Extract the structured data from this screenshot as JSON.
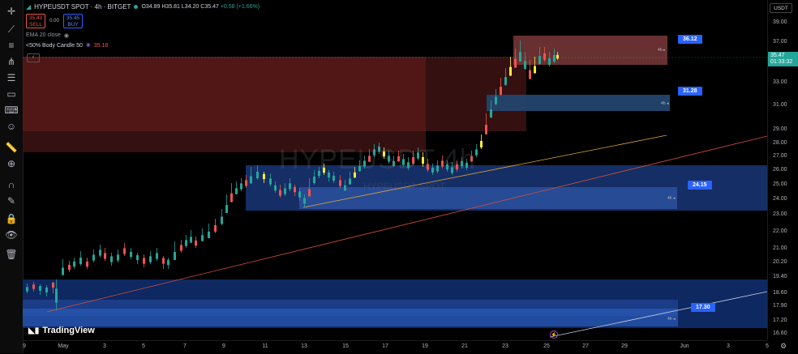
{
  "toolbar": {
    "tools": [
      "crosshair-icon",
      "trend-line-icon",
      "horizontal-lines-icon",
      "pitchfork-icon",
      "fib-icon",
      "rectangle-icon",
      "text-icon",
      "emoji-icon",
      "ruler-icon",
      "zoom-icon",
      "magnet-icon",
      "lock-drawing-icon",
      "lock-icon",
      "eye-icon",
      "trash-icon"
    ]
  },
  "header": {
    "symbol": "HYPEUSDT SPOT · 4h · BITGET",
    "ohlc": {
      "o": "O34.89",
      "h": "H35.81",
      "l": "L34.20",
      "c": "C35.47",
      "chg": "+0.58 (+1.66%)"
    },
    "sell": {
      "price": "35.43",
      "label": "SELL"
    },
    "spread": "0.00",
    "buy": {
      "price": "35.45",
      "label": "BUY"
    },
    "indicator1": "EMA 20 close",
    "indicator2": {
      "name": "<50% Body Candle 50",
      "value": "35.18"
    }
  },
  "watermark": {
    "main": "HYPEUSDT 4h",
    "sub": "HYPEUSDT SPOT"
  },
  "price_scale": {
    "unit": "USDT",
    "current": {
      "price": "35.47",
      "countdown": "01:33:32"
    },
    "ticks": [
      "39.00",
      "37.00",
      "33.00",
      "31.00",
      "29.00",
      "28.00",
      "27.00",
      "26.00",
      "25.00",
      "24.00",
      "23.00",
      "22.00",
      "21.00",
      "20.20",
      "19.40",
      "18.60",
      "17.90",
      "17.20",
      "16.60"
    ]
  },
  "time_scale": {
    "ticks": [
      "9",
      "May",
      "3",
      "5",
      "7",
      "9",
      "11",
      "13",
      "15",
      "17",
      "19",
      "21",
      "23",
      "25",
      "27",
      "29",
      "Jun",
      "3",
      "5"
    ]
  },
  "flags": [
    {
      "text": "36.12"
    },
    {
      "text": "31.28"
    },
    {
      "text": "24.15"
    },
    {
      "text": "17.30"
    }
  ],
  "zone_labels": [
    "4h ▸",
    "4h ◂",
    "4h ◂",
    "4h ◂"
  ],
  "branding": {
    "logo": "TradingView"
  },
  "colors": {
    "up": "#26a69a",
    "down": "#ef5350",
    "yellow": "#ffeb3b",
    "accent": "#2962ff"
  }
}
